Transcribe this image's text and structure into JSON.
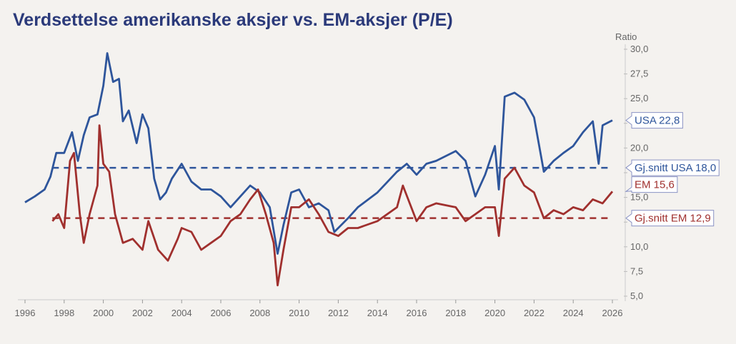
{
  "chart_data": {
    "type": "line",
    "title": "Verdsettelse amerikanske aksjer vs. EM-aksjer (P/E)",
    "ylabel": "Ratio",
    "xlim": [
      1996,
      2026
    ],
    "ylim": [
      5,
      30
    ],
    "x_ticks": [
      "1996",
      "1998",
      "2000",
      "2002",
      "2004",
      "2006",
      "2008",
      "2010",
      "2012",
      "2014",
      "2016",
      "2018",
      "2020",
      "2022",
      "2024",
      "2026"
    ],
    "y_ticks": [
      "5,0",
      "7,5",
      "10,0",
      "",
      "15,0",
      "",
      "20,0",
      "",
      "25,0",
      "27,5",
      "30,0"
    ],
    "y_tick_values": [
      5,
      7.5,
      10,
      12.5,
      15,
      17.5,
      20,
      22.5,
      25,
      27.5,
      30
    ],
    "y_axis_side": "right",
    "grid": false,
    "colors": {
      "usa": "#2e559b",
      "em": "#a0302e"
    },
    "series": [
      {
        "key": "usa",
        "x": [
          1996.0,
          1996.5,
          1997.0,
          1997.3,
          1997.6,
          1998.0,
          1998.4,
          1998.7,
          1999.0,
          1999.3,
          1999.7,
          2000.0,
          2000.2,
          2000.5,
          2000.8,
          2001.0,
          2001.3,
          2001.7,
          2002.0,
          2002.3,
          2002.6,
          2002.9,
          2003.2,
          2003.5,
          2004.0,
          2004.5,
          2005.0,
          2005.5,
          2006.0,
          2006.5,
          2007.0,
          2007.5,
          2008.0,
          2008.5,
          2008.9,
          2009.2,
          2009.6,
          2010.0,
          2010.5,
          2011.0,
          2011.5,
          2011.8,
          2012.5,
          2013.0,
          2014.0,
          2015.0,
          2015.5,
          2016.0,
          2016.5,
          2017.0,
          2018.0,
          2018.5,
          2019.0,
          2019.5,
          2020.0,
          2020.2,
          2020.5,
          2021.0,
          2021.5,
          2022.0,
          2022.5,
          2023.0,
          2023.5,
          2024.0,
          2024.5,
          2025.0,
          2025.3,
          2025.5,
          2026.0
        ],
        "values": [
          14.5,
          15.1,
          15.8,
          17.1,
          19.5,
          19.5,
          21.6,
          18.7,
          21.3,
          23.1,
          23.4,
          26.3,
          29.6,
          26.7,
          27.0,
          22.7,
          23.8,
          20.5,
          23.4,
          22.0,
          16.9,
          14.8,
          15.5,
          16.9,
          18.4,
          16.6,
          15.8,
          15.8,
          15.1,
          14.0,
          15.1,
          16.2,
          15.5,
          14.0,
          9.3,
          12.2,
          15.5,
          15.8,
          14.0,
          14.4,
          13.7,
          11.5,
          12.9,
          14.0,
          15.5,
          17.6,
          18.4,
          17.3,
          18.4,
          18.7,
          19.7,
          18.7,
          15.1,
          17.3,
          20.2,
          15.8,
          25.2,
          25.6,
          24.9,
          23.1,
          17.6,
          18.7,
          19.5,
          20.2,
          21.6,
          22.7,
          18.4,
          22.3,
          22.8
        ]
      },
      {
        "key": "em",
        "x": [
          1997.4,
          1997.7,
          1998.0,
          1998.3,
          1998.5,
          1998.8,
          1999.0,
          1999.3,
          1999.7,
          1999.8,
          2000.0,
          2000.3,
          2000.6,
          2001.0,
          2001.5,
          2002.0,
          2002.3,
          2002.8,
          2003.3,
          2003.8,
          2004.0,
          2004.5,
          2005.0,
          2005.5,
          2006.0,
          2006.5,
          2007.0,
          2007.5,
          2007.9,
          2008.3,
          2008.7,
          2008.9,
          2009.2,
          2009.6,
          2010.0,
          2010.5,
          2011.0,
          2011.5,
          2012.0,
          2012.5,
          2013.0,
          2014.0,
          2015.0,
          2015.3,
          2016.0,
          2016.5,
          2017.0,
          2018.0,
          2018.5,
          2019.0,
          2019.5,
          2020.0,
          2020.2,
          2020.5,
          2021.0,
          2021.5,
          2022.0,
          2022.5,
          2023.0,
          2023.5,
          2024.0,
          2024.5,
          2025.0,
          2025.5,
          2026.0
        ],
        "values": [
          12.6,
          13.3,
          11.9,
          18.7,
          19.5,
          13.3,
          10.4,
          13.3,
          16.2,
          22.3,
          18.4,
          17.6,
          13.3,
          10.4,
          10.8,
          9.7,
          12.6,
          9.7,
          8.6,
          10.8,
          11.9,
          11.5,
          9.7,
          10.4,
          11.1,
          12.6,
          13.3,
          14.8,
          15.8,
          13.3,
          10.4,
          6.1,
          9.7,
          14.0,
          14.0,
          14.8,
          13.3,
          11.5,
          11.1,
          11.9,
          11.9,
          12.6,
          14.0,
          16.2,
          12.6,
          14.0,
          14.4,
          14.0,
          12.6,
          13.3,
          14.0,
          14.0,
          11.1,
          16.9,
          18.0,
          16.2,
          15.5,
          12.9,
          13.7,
          13.3,
          14.0,
          13.7,
          14.8,
          14.4,
          15.6
        ]
      }
    ],
    "reference_lines": [
      {
        "key": "usa",
        "value": 18.0,
        "from": 1997.4
      },
      {
        "key": "em",
        "value": 12.9,
        "from": 1997.4
      }
    ],
    "annotations": [
      {
        "key": "usa",
        "value": 22.8,
        "text": "USA 22,8"
      },
      {
        "key": "usa",
        "value": 18.0,
        "text": "Gj.snitt USA 18,0"
      },
      {
        "key": "em",
        "value": 15.6,
        "text": "EM 15,6"
      },
      {
        "key": "em",
        "value": 12.9,
        "text": "Gj.snitt EM 12,9"
      }
    ]
  }
}
